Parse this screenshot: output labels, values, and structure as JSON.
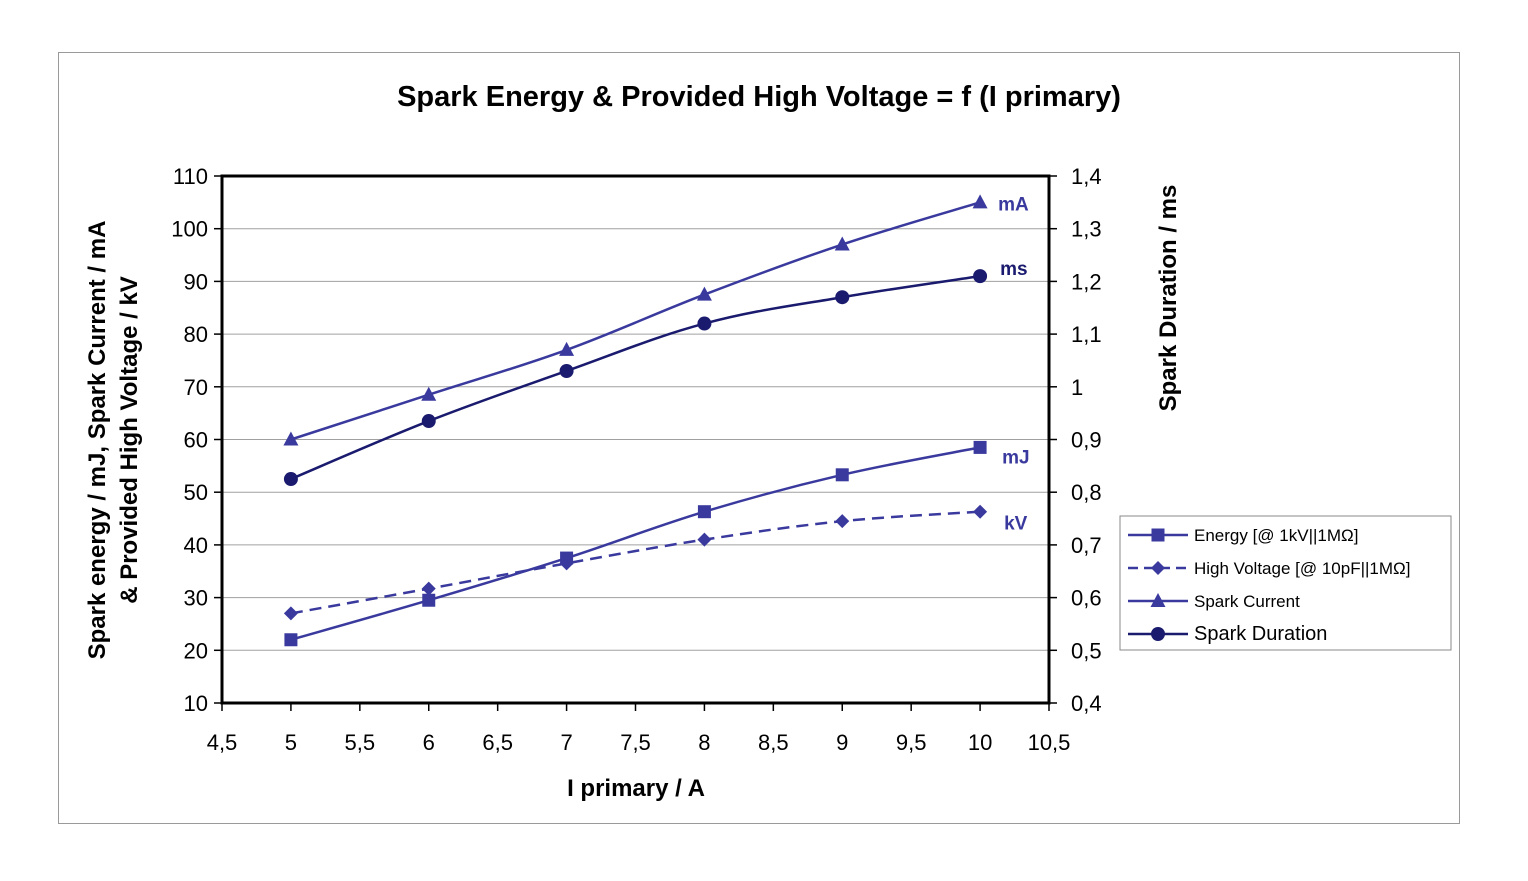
{
  "chart_data": {
    "type": "line",
    "title": "Spark Energy & Provided High Voltage = f (I primary)",
    "xlabel": "I primary / A",
    "ylabel_line1": "Spark energy / mJ, Spark Current / mA",
    "ylabel_line2": "& Provided High Voltage / kV",
    "y2label": "Spark Duration / ms",
    "xlim": [
      4.5,
      10.5
    ],
    "ylim": [
      10,
      110
    ],
    "y2lim": [
      0.4,
      1.4
    ],
    "x_ticks": [
      "4,5",
      "5",
      "5,5",
      "6",
      "6,5",
      "7",
      "7,5",
      "8",
      "8,5",
      "9",
      "9,5",
      "10",
      "10,5"
    ],
    "y_ticks": [
      "10",
      "20",
      "30",
      "40",
      "50",
      "60",
      "70",
      "80",
      "90",
      "100",
      "110"
    ],
    "y2_ticks": [
      "0,4",
      "0,5",
      "0,6",
      "0,7",
      "0,8",
      "0,9",
      "1",
      "1,1",
      "1,2",
      "1,3",
      "1,4"
    ],
    "grid": "horizontal",
    "legend_position": "right",
    "series": [
      {
        "name": "Energy [@ 1kV||1MΩ]",
        "axis": "left",
        "marker": "square",
        "dash": "solid",
        "color": "#3a3a9e",
        "unit_label": "mJ",
        "x": [
          5,
          6,
          7,
          8,
          9,
          10
        ],
        "y": [
          22,
          29.5,
          37.5,
          46.3,
          53.3,
          58.5
        ]
      },
      {
        "name": "High Voltage [@ 10pF||1MΩ]",
        "axis": "left",
        "marker": "diamond",
        "dash": "dashed",
        "color": "#3a3a9e",
        "unit_label": "kV",
        "x": [
          5,
          6,
          7,
          8,
          9,
          10
        ],
        "y": [
          27,
          31.7,
          36.5,
          41,
          44.5,
          46.3
        ]
      },
      {
        "name": "Spark Current",
        "axis": "left",
        "marker": "triangle",
        "dash": "solid",
        "color": "#3a3a9e",
        "unit_label": "mA",
        "x": [
          5,
          6,
          7,
          8,
          9,
          10
        ],
        "y": [
          60,
          68.5,
          77,
          87.5,
          97,
          105
        ]
      },
      {
        "name": "Spark Duration",
        "axis": "right",
        "marker": "circle",
        "dash": "solid",
        "color": "#1a1a6e",
        "unit_label": "ms",
        "x": [
          5,
          6,
          7,
          8,
          9,
          10
        ],
        "y": [
          0.825,
          0.935,
          1.03,
          1.12,
          1.17,
          1.21
        ]
      }
    ]
  }
}
